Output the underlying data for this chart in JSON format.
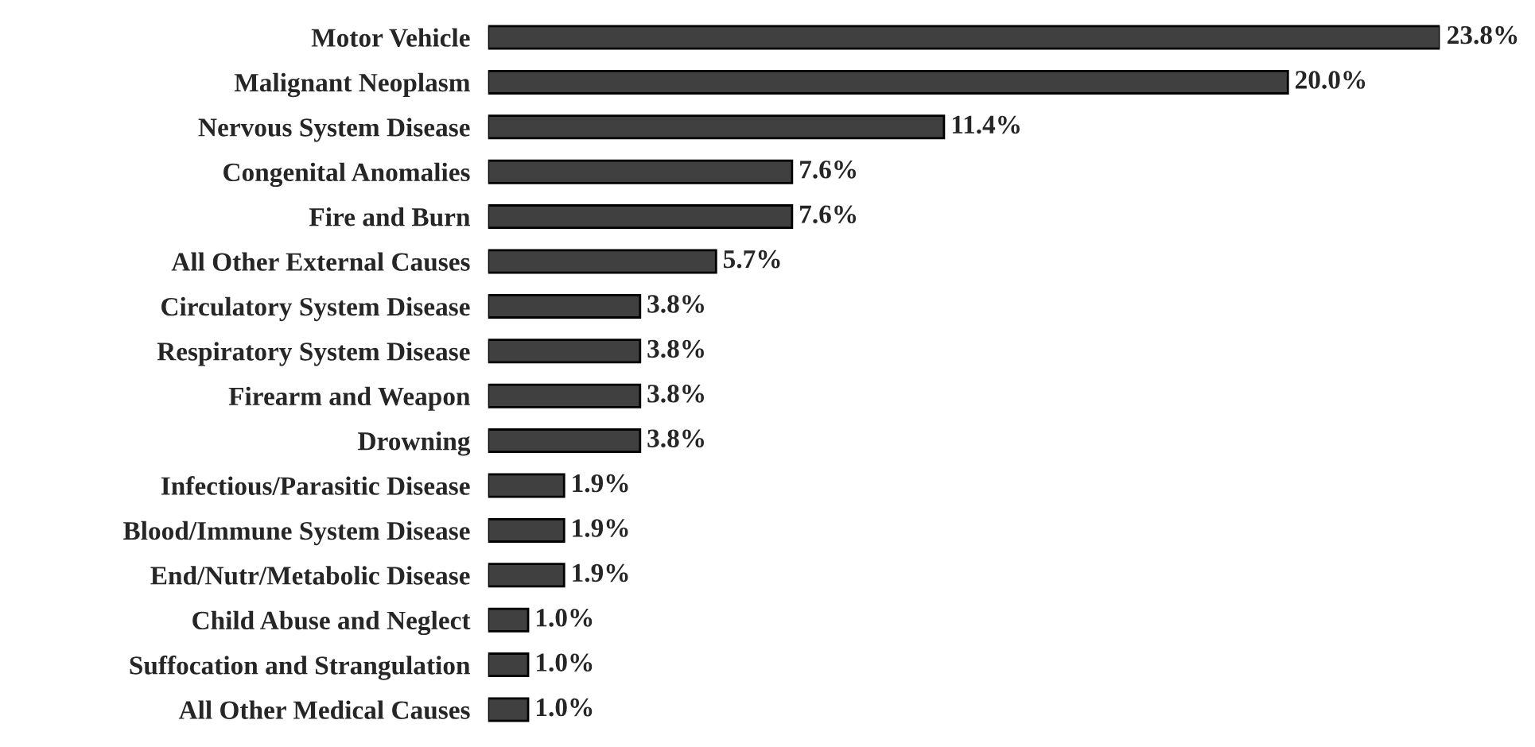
{
  "chart_data": {
    "type": "bar",
    "orientation": "horizontal",
    "categories": [
      "Motor Vehicle",
      "Malignant Neoplasm",
      "Nervous System Disease",
      "Congenital Anomalies",
      "Fire and Burn",
      "All Other External Causes",
      "Circulatory System Disease",
      "Respiratory System Disease",
      "Firearm and Weapon",
      "Drowning",
      "Infectious/Parasitic Disease",
      "Blood/Immune System Disease",
      "End/Nutr/Metabolic Disease",
      "Child Abuse and Neglect",
      "Suffocation and Strangulation",
      "All Other Medical Causes"
    ],
    "values": [
      23.8,
      20.0,
      11.4,
      7.6,
      7.6,
      5.7,
      3.8,
      3.8,
      3.8,
      3.8,
      1.9,
      1.9,
      1.9,
      1.0,
      1.0,
      1.0
    ],
    "value_labels": [
      "23.8%",
      "20.0%",
      "11.4%",
      "7.6%",
      "7.6%",
      "5.7%",
      "3.8%",
      "3.8%",
      "3.8%",
      "3.8%",
      "1.9%",
      "1.9%",
      "1.9%",
      "1.0%",
      "1.0%",
      "1.0%"
    ],
    "color": "#404040",
    "grid": false,
    "legend": false
  }
}
